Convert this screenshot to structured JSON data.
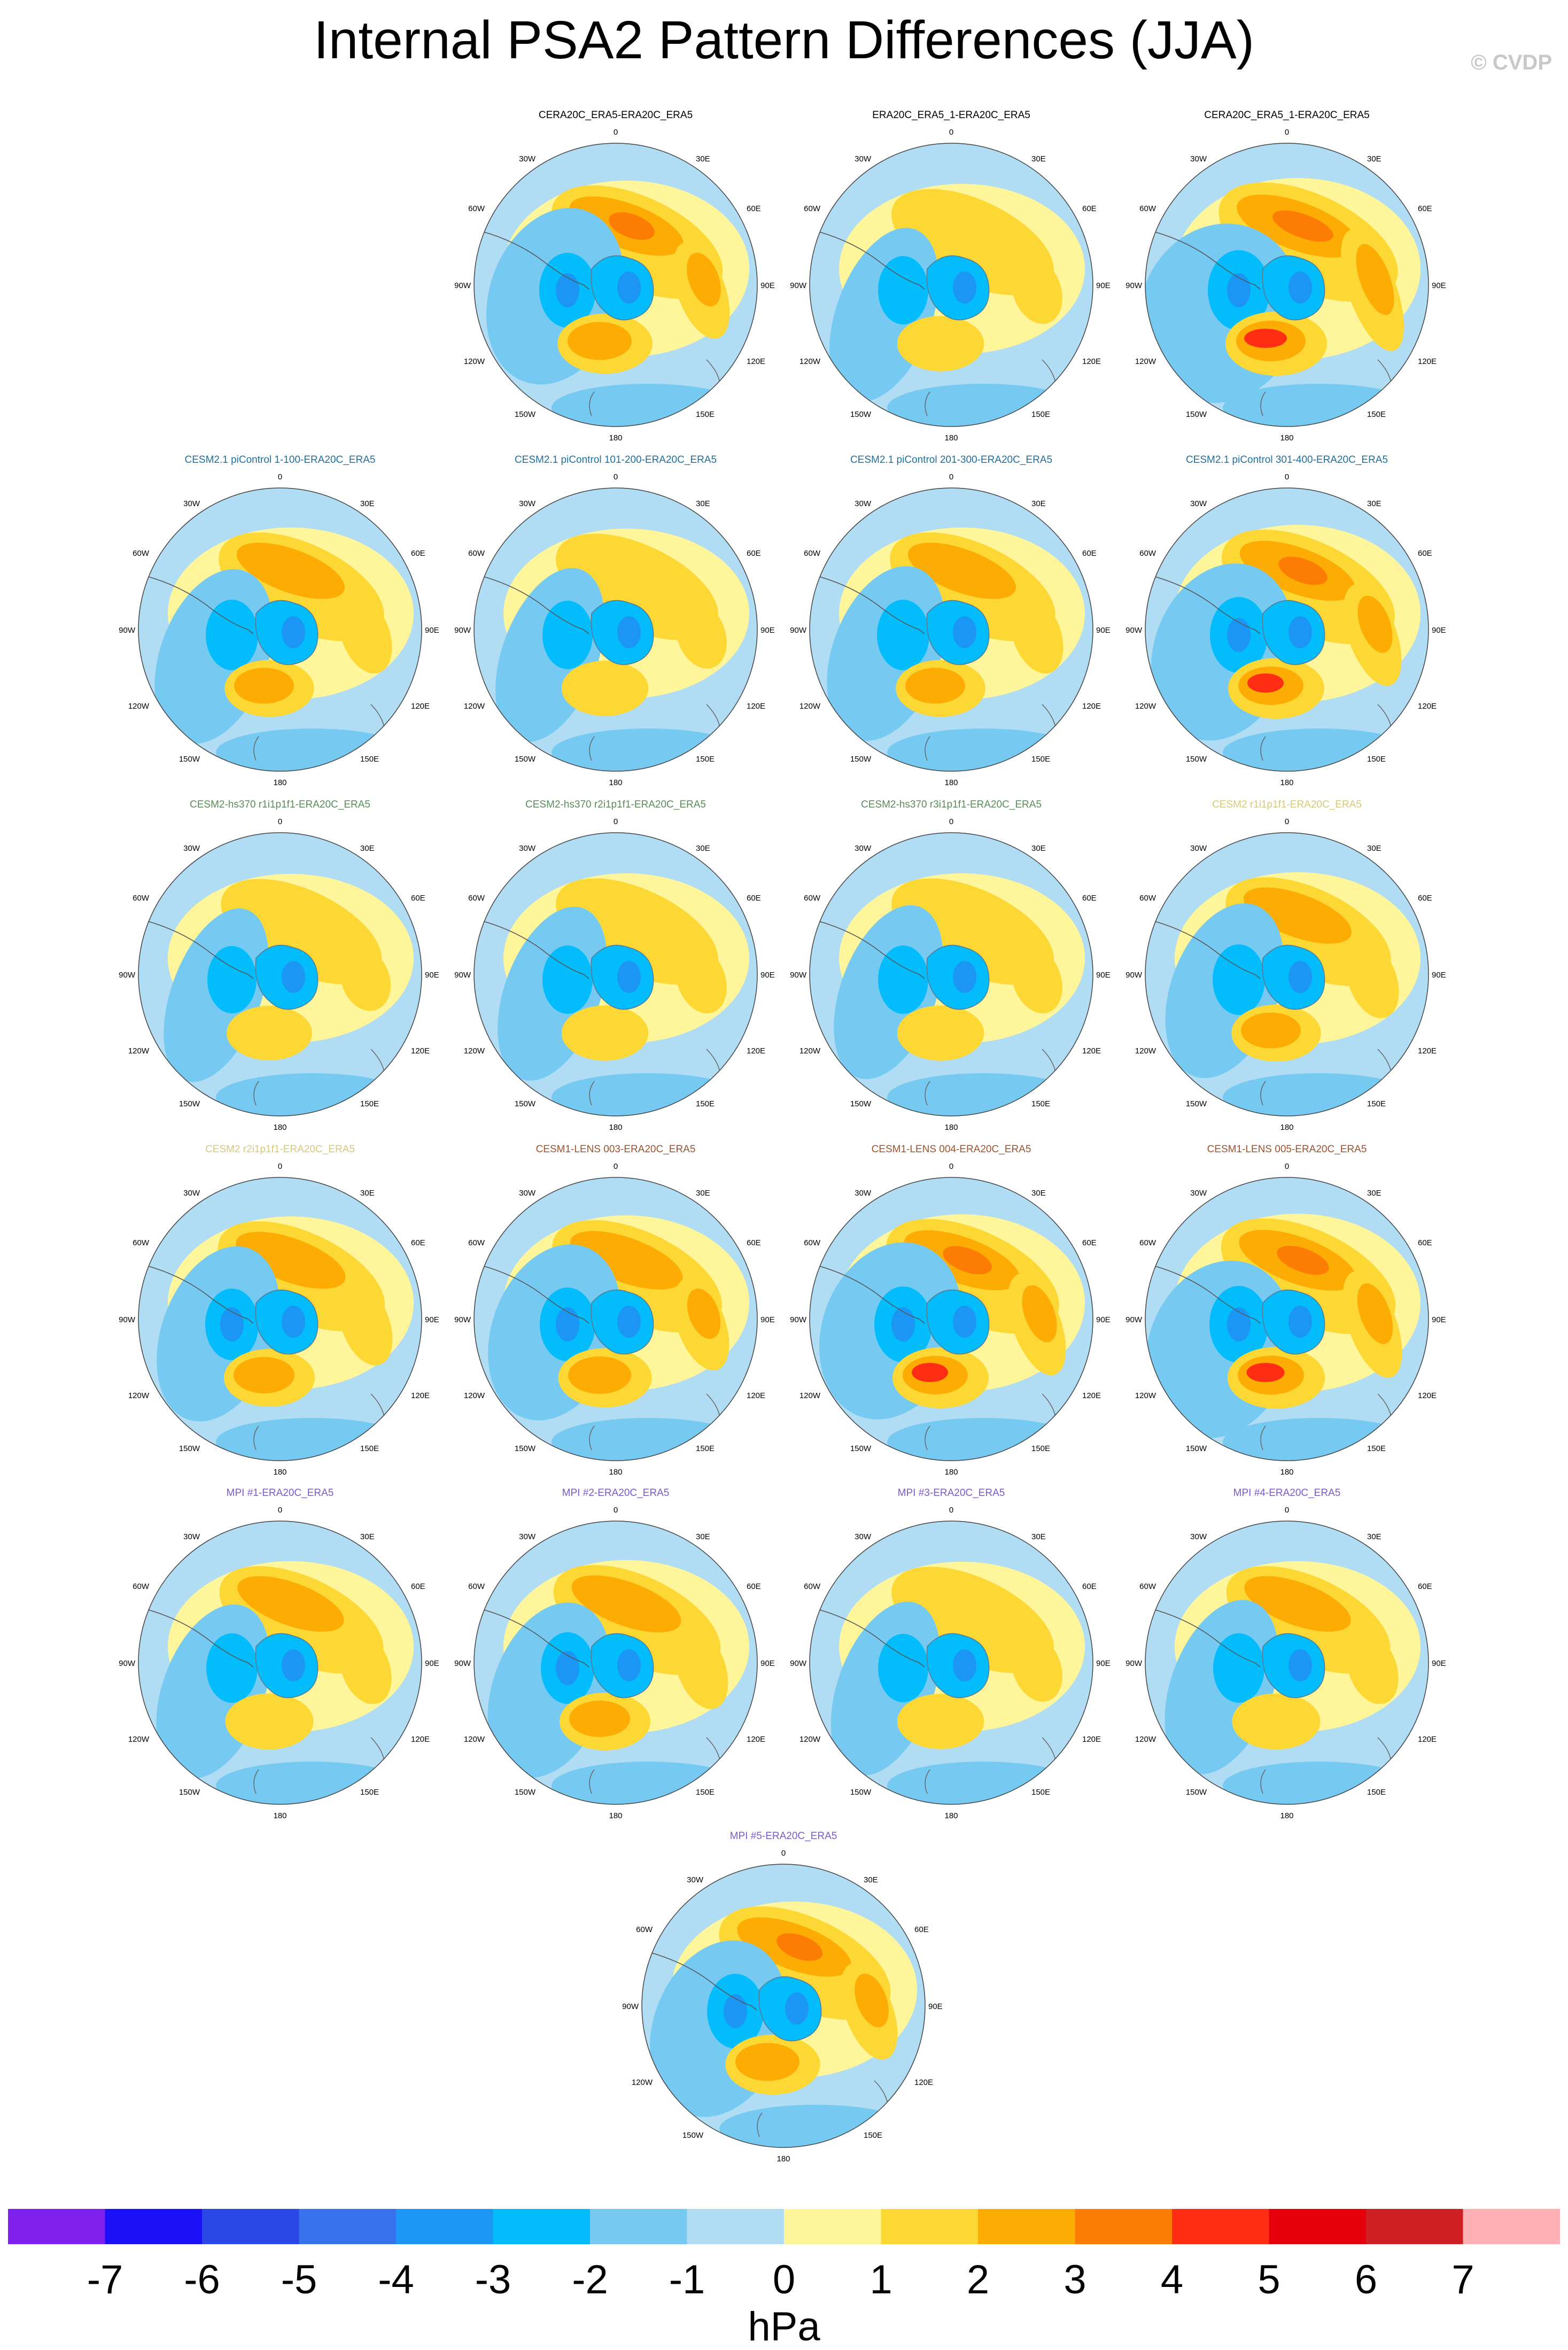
{
  "title": "Internal PSA2 Pattern Differences (JJA)",
  "credit": "© CVDP",
  "units": "hPa",
  "colorbar": {
    "labels": [
      "-7",
      "-6",
      "-5",
      "-4",
      "-3",
      "-2",
      "-1",
      "0",
      "1",
      "2",
      "3",
      "4",
      "5",
      "6",
      "7"
    ],
    "colors": [
      "#8020ee",
      "#1a10f5",
      "#2a48e8",
      "#3572ec",
      "#1b96f5",
      "#03bcfb",
      "#76caf2",
      "#b0dcf4",
      "#fff59a",
      "#fdd734",
      "#fdac04",
      "#fd7c03",
      "#ff2d14",
      "#e6000b",
      "#cf1f23",
      "#ffb0b5"
    ]
  },
  "map_labels": {
    "n0": "0",
    "n30w": "30W",
    "n30e": "30E",
    "n60w": "60W",
    "n60e": "60E",
    "n90w": "90W",
    "n90e": "90E",
    "n120w": "120W",
    "n120e": "120E",
    "n150w": "150W",
    "n150e": "150E",
    "n180": "180"
  },
  "panels": [
    {
      "title": "CERA20C_ERA5-ERA20C_ERA5",
      "color": "#000000",
      "strength": 0.75
    },
    {
      "title": "ERA20C_ERA5_1-ERA20C_ERA5",
      "color": "#000000",
      "strength": 0.45
    },
    {
      "title": "CERA20C_ERA5_1-ERA20C_ERA5",
      "color": "#000000",
      "strength": 1.0
    },
    {
      "title": "CESM2.1 piControl 1-100-ERA20C_ERA5",
      "color": "#1e6f9e",
      "strength": 0.55
    },
    {
      "title": "CESM2.1 piControl 101-200-ERA20C_ERA5",
      "color": "#1e6f9e",
      "strength": 0.45
    },
    {
      "title": "CESM2.1 piControl 201-300-ERA20C_ERA5",
      "color": "#1e6f9e",
      "strength": 0.55
    },
    {
      "title": "CESM2.1 piControl 301-400-ERA20C_ERA5",
      "color": "#1e6f9e",
      "strength": 0.8
    },
    {
      "title": "CESM2-hs370 r1i1p1f1-ERA20C_ERA5",
      "color": "#5a8c5a",
      "strength": 0.4
    },
    {
      "title": "CESM2-hs370 r2i1p1f1-ERA20C_ERA5",
      "color": "#5a8c5a",
      "strength": 0.45
    },
    {
      "title": "CESM2-hs370 r3i1p1f1-ERA20C_ERA5",
      "color": "#5a8c5a",
      "strength": 0.45
    },
    {
      "title": "CESM2 r1i1p1f1-ERA20C_ERA5",
      "color": "#d8c878",
      "strength": 0.55
    },
    {
      "title": "CESM2 r2i1p1f1-ERA20C_ERA5",
      "color": "#d8c878",
      "strength": 0.6
    },
    {
      "title": "CESM1-LENS 003-ERA20C_ERA5",
      "color": "#a0522d",
      "strength": 0.7
    },
    {
      "title": "CESM1-LENS 004-ERA20C_ERA5",
      "color": "#a0522d",
      "strength": 0.8
    },
    {
      "title": "CESM1-LENS 005-ERA20C_ERA5",
      "color": "#a0522d",
      "strength": 0.85
    },
    {
      "title": "MPI #1-ERA20C_ERA5",
      "color": "#7a5cc8",
      "strength": 0.5
    },
    {
      "title": "MPI #2-ERA20C_ERA5",
      "color": "#7a5cc8",
      "strength": 0.6
    },
    {
      "title": "MPI #3-ERA20C_ERA5",
      "color": "#7a5cc8",
      "strength": 0.45
    },
    {
      "title": "MPI #4-ERA20C_ERA5",
      "color": "#7a5cc8",
      "strength": 0.5
    },
    {
      "title": "MPI #5-ERA20C_ERA5",
      "color": "#7a5cc8",
      "strength": 0.75
    }
  ]
}
